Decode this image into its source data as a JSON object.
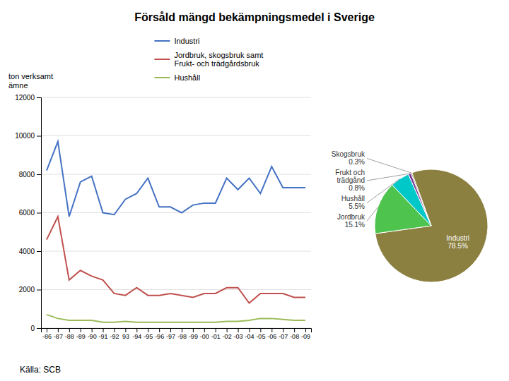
{
  "chart_data": [
    {
      "type": "line",
      "title": "Försåld mängd bekämpningsmedel i Sverige",
      "ylabel": "ton verksamt\nämne",
      "annotations": [
        "Källa: SCB"
      ],
      "categories": [
        "-86",
        "-87",
        "-88",
        "-89",
        "-90",
        "-91",
        "-92",
        "93",
        "-94",
        "-95",
        "-96",
        "-97",
        "-98",
        "-99",
        "-00",
        "-01",
        "-02",
        "-03",
        "-04",
        "-05",
        "-06",
        "-07",
        "-08",
        "-09"
      ],
      "series": [
        {
          "name": "Industri",
          "color": "#4472C4",
          "values": [
            8200,
            9700,
            5800,
            7600,
            7900,
            6000,
            5900,
            6700,
            7000,
            7800,
            6300,
            6300,
            6000,
            6400,
            6500,
            6500,
            7800,
            7200,
            7800,
            7000,
            8400,
            7300,
            7300,
            7300
          ]
        },
        {
          "name": "Jordbruk, skogsbruk samt\nFrukt- och trädgårdsbruk",
          "color": "#C0504D",
          "values": [
            4600,
            5800,
            2500,
            3000,
            2700,
            2500,
            1800,
            1700,
            2100,
            1700,
            1700,
            1800,
            1700,
            1600,
            1800,
            1800,
            2100,
            2100,
            1300,
            1800,
            1800,
            1800,
            1600,
            1600
          ]
        },
        {
          "name": "Hushåll",
          "color": "#9BBB59",
          "values": [
            700,
            500,
            400,
            400,
            400,
            300,
            300,
            350,
            300,
            300,
            300,
            300,
            300,
            300,
            300,
            300,
            350,
            350,
            400,
            500,
            500,
            450,
            400,
            400
          ]
        }
      ],
      "ylim": [
        0,
        12000
      ],
      "yticks": [
        0,
        2000,
        4000,
        6000,
        8000,
        10000,
        12000
      ],
      "grid": true,
      "legend": "top"
    },
    {
      "type": "pie",
      "categories": [
        "Industri",
        "Jordbruk",
        "Hushåll",
        "Frukt och\nträdgånd",
        "Skogsbruk"
      ],
      "values": [
        78.5,
        15.1,
        5.5,
        0.8,
        0.3
      ],
      "value_labels": [
        "78.5%",
        "15.1%",
        "5.5%",
        "0.8%",
        "0.3%"
      ],
      "colors": [
        "#8B8040",
        "#4EC44E",
        "#00C8C8",
        "#7B3A9B",
        "#6B6B20"
      ]
    }
  ]
}
